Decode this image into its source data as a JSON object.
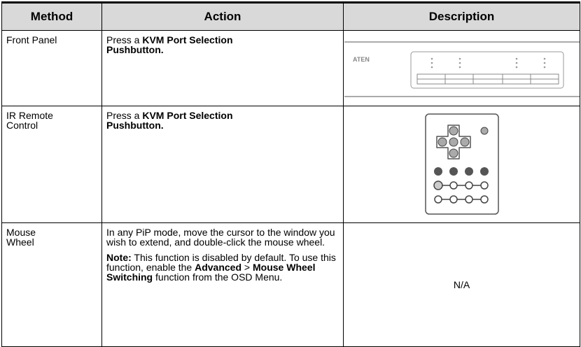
{
  "table": {
    "header": [
      "Method",
      "Action",
      "Description"
    ],
    "rows": [
      {
        "method": "Front Panel",
        "action": [
          [
            {
              "text": "Press a ",
              "bold": false
            },
            {
              "text": "KVM Port Selection Pushbutton.",
              "bold": true
            }
          ]
        ],
        "description": null
      },
      {
        "method": "IR Remote Control",
        "action": [
          [
            {
              "text": "Press a ",
              "bold": false
            },
            {
              "text": "KVM Port Selection Pushbutton.",
              "bold": true
            }
          ]
        ],
        "description": null
      },
      {
        "method": "Mouse Wheel",
        "action": [
          [
            {
              "text": "In any PiP mode, move the cursor to the window you wish to extend, and double-click the mouse wheel.",
              "bold": false
            }
          ],
          [
            {
              "text": "Note:",
              "bold": true
            },
            {
              "text": " This function is disabled by default. To use this function, enable the ",
              "bold": false
            },
            {
              "text": "Advanced",
              "bold": true
            },
            {
              "text": " > ",
              "bold": false
            },
            {
              "text": "Mouse Wheel Switching",
              "bold": true
            },
            {
              "text": " function from the OSD Menu.",
              "bold": false
            }
          ]
        ],
        "description": "N/A"
      }
    ]
  }
}
